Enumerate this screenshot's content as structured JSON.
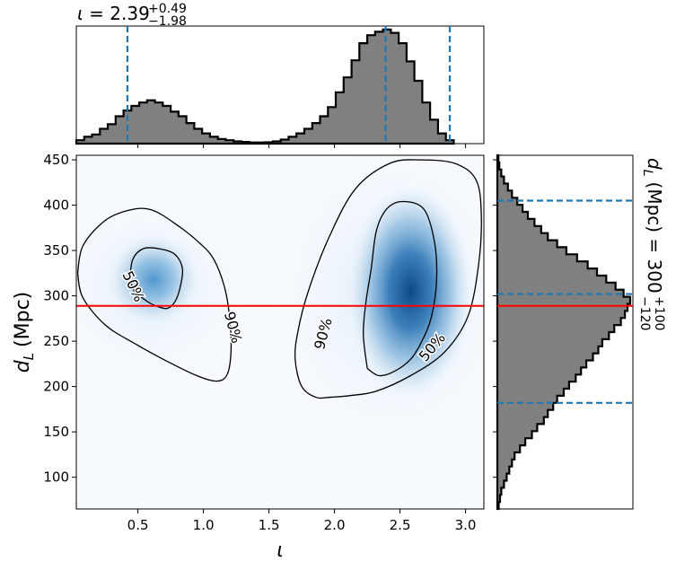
{
  "chart_data": [
    {
      "type": "heatmap",
      "panel": "joint",
      "xlabel": "ι",
      "ylabel_main": "d",
      "ylabel_sub": "L",
      "ylabel_unit": "(Mpc)",
      "xlim": [
        0.03,
        3.14
      ],
      "ylim": [
        65,
        455
      ],
      "x_ticks": [
        0.5,
        1.0,
        1.5,
        2.0,
        2.5,
        3.0
      ],
      "x_tick_labels": [
        "0.5",
        "1.0",
        "1.5",
        "2.0",
        "2.5",
        "3.0"
      ],
      "y_ticks": [
        100,
        150,
        200,
        250,
        300,
        350,
        400,
        450
      ],
      "y_tick_labels": [
        "100",
        "150",
        "200",
        "250",
        "300",
        "350",
        "400",
        "450"
      ],
      "colormap": "Blues",
      "density_peaks": [
        {
          "x": 2.58,
          "y": 305,
          "weight": 1.0
        },
        {
          "x": 0.62,
          "y": 318,
          "weight": 0.55
        }
      ],
      "injected_value_line": {
        "y": 289,
        "color": "#ff0000"
      },
      "contours": [
        {
          "level": "50%",
          "color": "#000000",
          "labels": [
            {
              "text": "50%",
              "x": 0.46,
              "y": 310,
              "rotation": 65
            },
            {
              "text": "50%",
              "x": 2.75,
              "y": 243,
              "rotation": -50
            }
          ],
          "paths": [
            [
              [
                0.44,
                318
              ],
              [
                0.46,
                340
              ],
              [
                0.54,
                352
              ],
              [
                0.66,
                352
              ],
              [
                0.78,
                346
              ],
              [
                0.84,
                330
              ],
              [
                0.82,
                308
              ],
              [
                0.78,
                293
              ],
              [
                0.72,
                286
              ],
              [
                0.62,
                290
              ],
              [
                0.54,
                297
              ],
              [
                0.47,
                306
              ],
              [
                0.44,
                318
              ]
            ],
            [
              [
                2.25,
                220
              ],
              [
                2.22,
                258
              ],
              [
                2.24,
                293
              ],
              [
                2.28,
                330
              ],
              [
                2.32,
                372
              ],
              [
                2.4,
                396
              ],
              [
                2.52,
                404
              ],
              [
                2.68,
                396
              ],
              [
                2.76,
                362
              ],
              [
                2.78,
                320
              ],
              [
                2.74,
                277
              ],
              [
                2.66,
                248
              ],
              [
                2.58,
                230
              ],
              [
                2.46,
                217
              ],
              [
                2.34,
                212
              ],
              [
                2.25,
                220
              ]
            ]
          ]
        },
        {
          "level": "90%",
          "color": "#000000",
          "labels": [
            {
              "text": "90%",
              "x": 1.22,
              "y": 265,
              "rotation": 75
            },
            {
              "text": "90%",
              "x": 1.92,
              "y": 258,
              "rotation": -75
            }
          ],
          "paths": [
            [
              [
                0.04,
                325
              ],
              [
                0.08,
                355
              ],
              [
                0.24,
                382
              ],
              [
                0.42,
                394
              ],
              [
                0.6,
                395
              ],
              [
                0.8,
                378
              ],
              [
                0.98,
                357
              ],
              [
                1.08,
                340
              ],
              [
                1.16,
                310
              ],
              [
                1.2,
                276
              ],
              [
                1.21,
                238
              ],
              [
                1.18,
                213
              ],
              [
                1.1,
                206
              ],
              [
                0.95,
                212
              ],
              [
                0.72,
                228
              ],
              [
                0.48,
                247
              ],
              [
                0.25,
                268
              ],
              [
                0.08,
                298
              ],
              [
                0.04,
                325
              ]
            ],
            [
              [
                1.95,
                188
              ],
              [
                1.86,
                188
              ],
              [
                1.75,
                200
              ],
              [
                1.7,
                230
              ],
              [
                1.72,
                260
              ],
              [
                1.8,
                305
              ],
              [
                1.96,
                365
              ],
              [
                2.16,
                418
              ],
              [
                2.42,
                446
              ],
              [
                2.66,
                450
              ],
              [
                2.92,
                446
              ],
              [
                3.08,
                428
              ],
              [
                3.12,
                390
              ],
              [
                3.1,
                335
              ],
              [
                3.02,
                278
              ],
              [
                2.84,
                238
              ],
              [
                2.58,
                212
              ],
              [
                2.32,
                195
              ],
              [
                2.12,
                190
              ],
              [
                1.95,
                188
              ]
            ]
          ]
        }
      ]
    },
    {
      "type": "bar",
      "panel": "top-marginal",
      "title_symbol": "ι",
      "title_value": "2.39",
      "title_upper": "+0.49",
      "title_lower": "−1.98",
      "title_prefix": "ι = 2.39",
      "bin_start": 0.03,
      "bin_width": 0.06,
      "ylim": [
        0,
        1.03
      ],
      "values": [
        0.03,
        0.06,
        0.08,
        0.13,
        0.17,
        0.24,
        0.29,
        0.33,
        0.36,
        0.38,
        0.36,
        0.33,
        0.28,
        0.24,
        0.18,
        0.13,
        0.09,
        0.06,
        0.04,
        0.03,
        0.02,
        0.015,
        0.01,
        0.01,
        0.012,
        0.02,
        0.035,
        0.06,
        0.09,
        0.13,
        0.18,
        0.24,
        0.32,
        0.45,
        0.58,
        0.73,
        0.88,
        0.95,
        0.98,
        1.0,
        0.97,
        0.88,
        0.72,
        0.55,
        0.36,
        0.21,
        0.09,
        0.03
      ],
      "quantile_lines": [
        0.42,
        2.39,
        2.88
      ],
      "line_color": "#1f77b4",
      "fill_color": "#808080"
    },
    {
      "type": "bar",
      "panel": "right-marginal",
      "orientation": "horizontal",
      "title_symbol": "d",
      "title_sub": "L",
      "title_unit": "(Mpc)",
      "title_value": "300",
      "title_upper": "+100",
      "title_lower": "−120",
      "bin_start": 65,
      "bin_width": 7.8,
      "ylim": [
        65,
        455
      ],
      "values": [
        0.01,
        0.02,
        0.03,
        0.05,
        0.07,
        0.09,
        0.11,
        0.13,
        0.17,
        0.21,
        0.26,
        0.3,
        0.35,
        0.38,
        0.42,
        0.45,
        0.5,
        0.54,
        0.59,
        0.63,
        0.67,
        0.72,
        0.76,
        0.79,
        0.84,
        0.88,
        0.93,
        0.96,
        0.98,
        1.0,
        0.95,
        0.89,
        0.82,
        0.75,
        0.68,
        0.6,
        0.52,
        0.45,
        0.38,
        0.33,
        0.28,
        0.23,
        0.19,
        0.15,
        0.11,
        0.08,
        0.05,
        0.03,
        0.015,
        0.008
      ],
      "quantile_lines": [
        182,
        302,
        405
      ],
      "line_color": "#1f77b4",
      "fill_color": "#808080",
      "injected_value_line": {
        "y": 289,
        "color": "#ff0000"
      }
    }
  ]
}
